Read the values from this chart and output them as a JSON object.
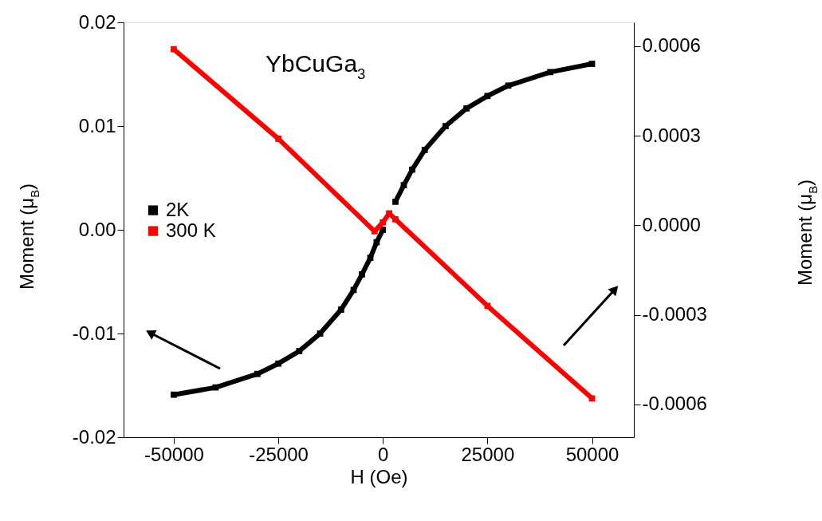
{
  "chart_data": {
    "type": "line",
    "xlabel": "H (Oe)",
    "ylabel": "Moment (μ$_{B}$)",
    "y2label": "Moment (μ$_{B}$)",
    "annotations": [
      "YbCuGa$_{3}$"
    ],
    "xlim": [
      -62000,
      60000
    ],
    "xticks": [
      -50000,
      -25000,
      0,
      25000,
      50000
    ],
    "ylim": [
      -0.02,
      0.02
    ],
    "yticks": [
      {
        "value": -0.02,
        "label": "-0.02"
      },
      {
        "value": -0.01,
        "label": "-0.01"
      },
      {
        "value": 0,
        "label": "0.00"
      },
      {
        "value": 0.01,
        "label": "0.01"
      },
      {
        "value": 0.02,
        "label": "0.02"
      }
    ],
    "y2lim": [
      -0.00071,
      0.00068
    ],
    "y2ticks": [
      {
        "value": -0.0006,
        "label": "-0.0006"
      },
      {
        "value": -0.0003,
        "label": "-0.0003"
      },
      {
        "value": 0,
        "label": "0.0000"
      },
      {
        "value": 0.0003,
        "label": "0.0003"
      },
      {
        "value": 0.0006,
        "label": "0.0006"
      }
    ],
    "grid": false,
    "legend": "left",
    "marker": "square",
    "line_style": "solid",
    "series": [
      {
        "name": "2K",
        "color": "#000000",
        "x": [
          -50000,
          -40000,
          -30000,
          -25000,
          -20000,
          -15000,
          -10000,
          -7000,
          -5000,
          -3000,
          -1500,
          0,
          1500,
          3000,
          5000,
          7000,
          10000,
          15000,
          20000,
          25000,
          30000,
          40000,
          50000
        ],
        "values": [
          -0.0159,
          -0.0152,
          -0.0139,
          -0.0129,
          -0.0117,
          -0.01,
          -0.0077,
          -0.0058,
          -0.0043,
          -0.0027,
          -0.0012,
          0.0,
          null,
          0.0027,
          0.0043,
          0.0058,
          0.0077,
          0.01,
          0.0117,
          0.0129,
          0.0139,
          0.0152,
          0.016
        ]
      },
      {
        "name": "300 K",
        "color": "#ff0000",
        "axis": "y2",
        "x": [
          -50000,
          -25000,
          -2000,
          0,
          1500,
          3000,
          25000,
          50000
        ],
        "values": [
          0.00059,
          0.00029,
          -2e-05,
          1e-05,
          4e-05,
          2e-05,
          -0.00027,
          -0.00058
        ]
      }
    ]
  }
}
